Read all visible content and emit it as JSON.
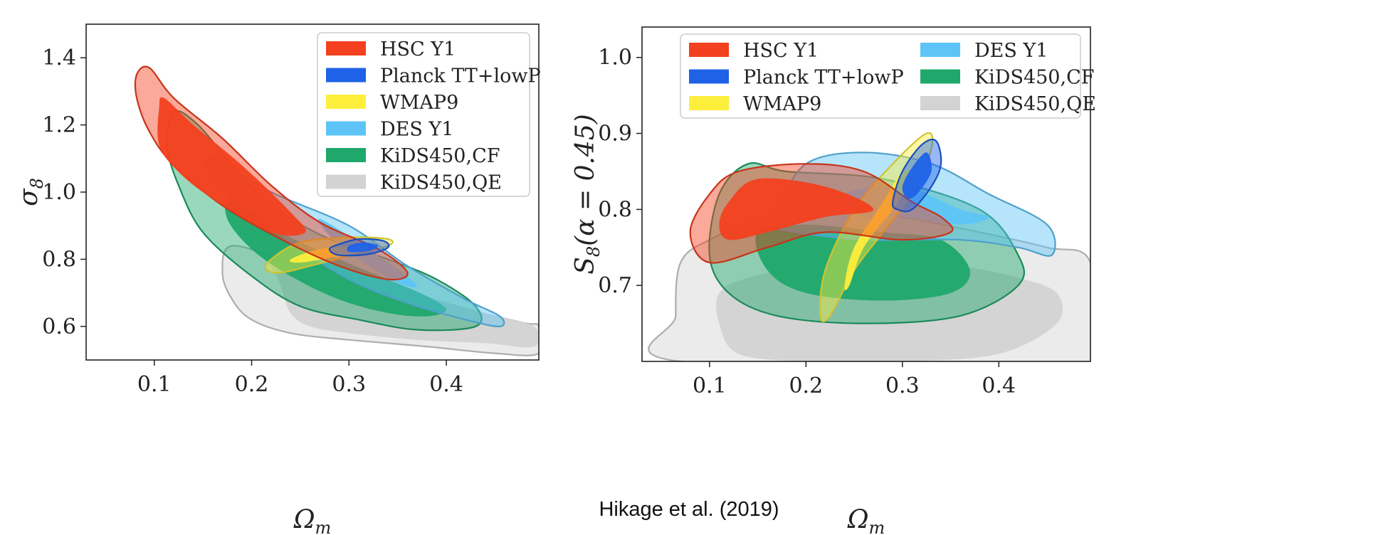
{
  "caption": "Hikage et al. (2019)",
  "colors": {
    "HSC Y1": "#f3401f",
    "Planck TT+lowP": "#1f62e8",
    "WMAP9": "#fdee3c",
    "DES Y1": "#5ec4f7",
    "KiDS450,CF": "#1fa86c",
    "KiDS450,QE": "#d3d3d3"
  },
  "chart_data": [
    {
      "type": "contour",
      "xlabel": "Ω",
      "xlabel_sub": "m",
      "ylabel": "σ",
      "ylabel_sub": "8",
      "xlim": [
        0.03,
        0.495
      ],
      "ylim": [
        0.5,
        1.5
      ],
      "xticks": [
        "0.1",
        "0.2",
        "0.3",
        "0.4"
      ],
      "yticks": [
        "0.6",
        "0.8",
        "1.0",
        "1.2",
        "1.4"
      ],
      "legend_position": "top-right",
      "legend_columns": 1,
      "series": [
        {
          "name": "KiDS450,QE",
          "outer": [
            [
              0.18,
              0.84
            ],
            [
              0.24,
              0.79
            ],
            [
              0.3,
              0.75
            ],
            [
              0.36,
              0.7
            ],
            [
              0.42,
              0.65
            ],
            [
              0.48,
              0.61
            ],
            [
              0.495,
              0.6
            ],
            [
              0.495,
              0.52
            ],
            [
              0.45,
              0.52
            ],
            [
              0.38,
              0.54
            ],
            [
              0.3,
              0.56
            ],
            [
              0.24,
              0.58
            ],
            [
              0.2,
              0.62
            ],
            [
              0.18,
              0.68
            ],
            [
              0.17,
              0.76
            ]
          ],
          "inner": [
            [
              0.22,
              0.82
            ],
            [
              0.28,
              0.78
            ],
            [
              0.33,
              0.73
            ],
            [
              0.39,
              0.68
            ],
            [
              0.44,
              0.64
            ],
            [
              0.49,
              0.6
            ],
            [
              0.49,
              0.54
            ],
            [
              0.44,
              0.55
            ],
            [
              0.37,
              0.56
            ],
            [
              0.3,
              0.58
            ],
            [
              0.26,
              0.6
            ],
            [
              0.24,
              0.64
            ],
            [
              0.23,
              0.72
            ]
          ]
        },
        {
          "name": "KiDS450,CF",
          "outer": [
            [
              0.12,
              1.24
            ],
            [
              0.145,
              1.2
            ],
            [
              0.18,
              1.08
            ],
            [
              0.22,
              0.96
            ],
            [
              0.28,
              0.86
            ],
            [
              0.34,
              0.8
            ],
            [
              0.39,
              0.74
            ],
            [
              0.43,
              0.66
            ],
            [
              0.43,
              0.6
            ],
            [
              0.37,
              0.59
            ],
            [
              0.31,
              0.62
            ],
            [
              0.25,
              0.66
            ],
            [
              0.2,
              0.75
            ],
            [
              0.15,
              0.88
            ],
            [
              0.125,
              1.02
            ],
            [
              0.113,
              1.14
            ]
          ],
          "inner": [
            [
              0.18,
              0.98
            ],
            [
              0.23,
              0.88
            ],
            [
              0.29,
              0.8
            ],
            [
              0.34,
              0.74
            ],
            [
              0.38,
              0.69
            ],
            [
              0.4,
              0.65
            ],
            [
              0.38,
              0.63
            ],
            [
              0.34,
              0.64
            ],
            [
              0.29,
              0.68
            ],
            [
              0.24,
              0.75
            ],
            [
              0.2,
              0.83
            ],
            [
              0.175,
              0.92
            ]
          ]
        },
        {
          "name": "DES Y1",
          "outer": [
            [
              0.16,
              1.1
            ],
            [
              0.22,
              1.0
            ],
            [
              0.3,
              0.9
            ],
            [
              0.36,
              0.78
            ],
            [
              0.42,
              0.68
            ],
            [
              0.455,
              0.63
            ],
            [
              0.455,
              0.6
            ],
            [
              0.42,
              0.62
            ],
            [
              0.36,
              0.67
            ],
            [
              0.3,
              0.74
            ],
            [
              0.24,
              0.85
            ],
            [
              0.19,
              0.96
            ],
            [
              0.16,
              1.05
            ]
          ],
          "inner": [
            [
              0.27,
              0.92
            ],
            [
              0.31,
              0.85
            ],
            [
              0.35,
              0.77
            ],
            [
              0.37,
              0.72
            ],
            [
              0.35,
              0.73
            ],
            [
              0.31,
              0.8
            ],
            [
              0.28,
              0.87
            ]
          ]
        },
        {
          "name": "WMAP9",
          "outer": [
            [
              0.22,
              0.8
            ],
            [
              0.25,
              0.85
            ],
            [
              0.3,
              0.865
            ],
            [
              0.34,
              0.86
            ],
            [
              0.34,
              0.84
            ],
            [
              0.3,
              0.81
            ],
            [
              0.26,
              0.78
            ],
            [
              0.23,
              0.76
            ],
            [
              0.215,
              0.77
            ]
          ],
          "inner": [
            [
              0.24,
              0.8
            ],
            [
              0.27,
              0.83
            ],
            [
              0.31,
              0.84
            ],
            [
              0.32,
              0.83
            ],
            [
              0.29,
              0.81
            ],
            [
              0.25,
              0.79
            ]
          ]
        },
        {
          "name": "HSC Y1",
          "outer": [
            [
              0.082,
              1.35
            ],
            [
              0.095,
              1.37
            ],
            [
              0.12,
              1.28
            ],
            [
              0.17,
              1.16
            ],
            [
              0.22,
              1.02
            ],
            [
              0.27,
              0.91
            ],
            [
              0.33,
              0.83
            ],
            [
              0.36,
              0.76
            ],
            [
              0.34,
              0.74
            ],
            [
              0.29,
              0.78
            ],
            [
              0.23,
              0.86
            ],
            [
              0.17,
              0.96
            ],
            [
              0.12,
              1.08
            ],
            [
              0.095,
              1.18
            ],
            [
              0.082,
              1.28
            ]
          ],
          "inner": [
            [
              0.105,
              1.25
            ],
            [
              0.11,
              1.28
            ],
            [
              0.14,
              1.2
            ],
            [
              0.19,
              1.08
            ],
            [
              0.24,
              0.94
            ],
            [
              0.255,
              0.88
            ],
            [
              0.22,
              0.88
            ],
            [
              0.16,
              0.98
            ],
            [
              0.125,
              1.06
            ],
            [
              0.105,
              1.14
            ]
          ]
        },
        {
          "name": "Planck TT+lowP",
          "outer": [
            [
              0.29,
              0.845
            ],
            [
              0.31,
              0.86
            ],
            [
              0.335,
              0.855
            ],
            [
              0.34,
              0.835
            ],
            [
              0.32,
              0.815
            ],
            [
              0.29,
              0.812
            ],
            [
              0.28,
              0.83
            ]
          ],
          "inner": [
            [
              0.3,
              0.84
            ],
            [
              0.315,
              0.85
            ],
            [
              0.33,
              0.84
            ],
            [
              0.32,
              0.825
            ],
            [
              0.3,
              0.822
            ]
          ]
        }
      ]
    },
    {
      "type": "contour",
      "xlabel": "Ω",
      "xlabel_sub": "m",
      "ylabel": "S",
      "ylabel_sub": "8",
      "ylabel_suffix": "(α = 0.45)",
      "xlim": [
        0.03,
        0.495
      ],
      "ylim": [
        0.6,
        1.04
      ],
      "xticks": [
        "0.1",
        "0.2",
        "0.3",
        "0.4"
      ],
      "yticks": [
        "0.7",
        "0.8",
        "0.9",
        "1.0"
      ],
      "legend_position": "top",
      "legend_columns": 2,
      "series": [
        {
          "name": "KiDS450,QE",
          "outer": [
            [
              0.07,
              0.73
            ],
            [
              0.1,
              0.76
            ],
            [
              0.16,
              0.79
            ],
            [
              0.23,
              0.8
            ],
            [
              0.3,
              0.79
            ],
            [
              0.38,
              0.77
            ],
            [
              0.45,
              0.75
            ],
            [
              0.495,
              0.73
            ],
            [
              0.495,
              0.6
            ],
            [
              0.07,
              0.6
            ],
            [
              0.065,
              0.66
            ]
          ],
          "inner": [
            [
              0.11,
              0.69
            ],
            [
              0.14,
              0.71
            ],
            [
              0.2,
              0.725
            ],
            [
              0.28,
              0.73
            ],
            [
              0.36,
              0.725
            ],
            [
              0.42,
              0.71
            ],
            [
              0.46,
              0.69
            ],
            [
              0.46,
              0.65
            ],
            [
              0.4,
              0.61
            ],
            [
              0.3,
              0.6
            ],
            [
              0.2,
              0.6
            ],
            [
              0.13,
              0.61
            ],
            [
              0.11,
              0.65
            ]
          ]
        },
        {
          "name": "KiDS450,CF",
          "outer": [
            [
              0.1,
              0.74
            ],
            [
              0.11,
              0.82
            ],
            [
              0.14,
              0.86
            ],
            [
              0.18,
              0.85
            ],
            [
              0.28,
              0.84
            ],
            [
              0.38,
              0.8
            ],
            [
              0.42,
              0.74
            ],
            [
              0.42,
              0.7
            ],
            [
              0.36,
              0.66
            ],
            [
              0.26,
              0.65
            ],
            [
              0.17,
              0.66
            ],
            [
              0.12,
              0.69
            ]
          ],
          "inner": [
            [
              0.15,
              0.77
            ],
            [
              0.2,
              0.78
            ],
            [
              0.28,
              0.77
            ],
            [
              0.34,
              0.76
            ],
            [
              0.37,
              0.72
            ],
            [
              0.35,
              0.69
            ],
            [
              0.28,
              0.68
            ],
            [
              0.2,
              0.69
            ],
            [
              0.16,
              0.72
            ]
          ]
        },
        {
          "name": "DES Y1",
          "outer": [
            [
              0.17,
              0.8
            ],
            [
              0.2,
              0.86
            ],
            [
              0.26,
              0.875
            ],
            [
              0.33,
              0.86
            ],
            [
              0.39,
              0.82
            ],
            [
              0.45,
              0.78
            ],
            [
              0.455,
              0.74
            ],
            [
              0.42,
              0.75
            ],
            [
              0.36,
              0.76
            ],
            [
              0.26,
              0.76
            ],
            [
              0.19,
              0.77
            ],
            [
              0.16,
              0.78
            ]
          ],
          "inner": [
            [
              0.24,
              0.82
            ],
            [
              0.3,
              0.83
            ],
            [
              0.36,
              0.8
            ],
            [
              0.39,
              0.79
            ],
            [
              0.36,
              0.78
            ],
            [
              0.3,
              0.79
            ],
            [
              0.26,
              0.79
            ]
          ]
        },
        {
          "name": "WMAP9",
          "outer": [
            [
              0.215,
              0.66
            ],
            [
              0.22,
              0.72
            ],
            [
              0.25,
              0.8
            ],
            [
              0.29,
              0.86
            ],
            [
              0.325,
              0.9
            ],
            [
              0.33,
              0.88
            ],
            [
              0.31,
              0.82
            ],
            [
              0.28,
              0.77
            ],
            [
              0.25,
              0.72
            ],
            [
              0.225,
              0.66
            ]
          ],
          "inner": [
            [
              0.24,
              0.7
            ],
            [
              0.25,
              0.75
            ],
            [
              0.28,
              0.81
            ],
            [
              0.3,
              0.85
            ],
            [
              0.31,
              0.84
            ],
            [
              0.29,
              0.8
            ],
            [
              0.26,
              0.75
            ],
            [
              0.245,
              0.7
            ]
          ]
        },
        {
          "name": "HSC Y1",
          "outer": [
            [
              0.08,
              0.77
            ],
            [
              0.1,
              0.82
            ],
            [
              0.13,
              0.85
            ],
            [
              0.2,
              0.86
            ],
            [
              0.26,
              0.85
            ],
            [
              0.31,
              0.81
            ],
            [
              0.34,
              0.79
            ],
            [
              0.35,
              0.77
            ],
            [
              0.3,
              0.76
            ],
            [
              0.22,
              0.77
            ],
            [
              0.16,
              0.75
            ],
            [
              0.1,
              0.73
            ]
          ],
          "inner": [
            [
              0.11,
              0.78
            ],
            [
              0.12,
              0.81
            ],
            [
              0.15,
              0.84
            ],
            [
              0.22,
              0.83
            ],
            [
              0.27,
              0.8
            ],
            [
              0.22,
              0.79
            ],
            [
              0.16,
              0.77
            ],
            [
              0.12,
              0.76
            ]
          ]
        },
        {
          "name": "Planck TT+lowP",
          "outer": [
            [
              0.29,
              0.81
            ],
            [
              0.3,
              0.85
            ],
            [
              0.32,
              0.885
            ],
            [
              0.335,
              0.89
            ],
            [
              0.34,
              0.86
            ],
            [
              0.33,
              0.83
            ],
            [
              0.31,
              0.8
            ],
            [
              0.295,
              0.8
            ]
          ],
          "inner": [
            [
              0.3,
              0.83
            ],
            [
              0.31,
              0.855
            ],
            [
              0.325,
              0.875
            ],
            [
              0.33,
              0.85
            ],
            [
              0.315,
              0.82
            ],
            [
              0.305,
              0.815
            ]
          ]
        }
      ]
    }
  ]
}
